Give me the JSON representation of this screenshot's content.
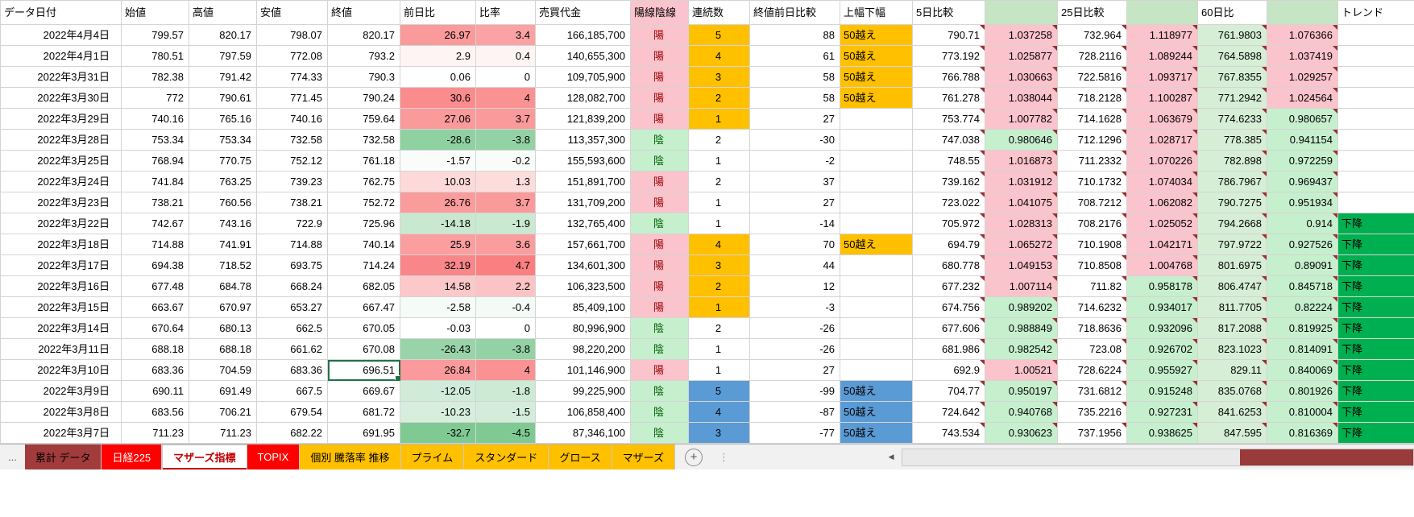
{
  "colors": {
    "scale_red": "#F8696B",
    "scale_green": "#63BE7B",
    "ratio_up_bg": "#FBC3CB",
    "ratio_down_bg": "#C6EFCE",
    "candle_up_text": "#9C0006",
    "candle_down_text": "#006100",
    "highlight_orange": "#FFC000",
    "highlight_blue": "#5B9BD5",
    "trend_down_bg": "#00B050",
    "mint_column_bg": "#D6EED6",
    "header_green_bg": "#C6E5C4",
    "selection_border": "#1F7246",
    "note_marker": "#9C2F2F",
    "grid_line": "#D4D4D4"
  },
  "columns": [
    {
      "key": "date",
      "label": "データ日付"
    },
    {
      "key": "open",
      "label": "始値"
    },
    {
      "key": "high",
      "label": "高値"
    },
    {
      "key": "low",
      "label": "安値"
    },
    {
      "key": "close",
      "label": "終値"
    },
    {
      "key": "change",
      "label": "前日比"
    },
    {
      "key": "pct",
      "label": "比率"
    },
    {
      "key": "value",
      "label": "売買代金"
    },
    {
      "key": "candle",
      "label": "陽線陰線",
      "fill": "pink"
    },
    {
      "key": "streak",
      "label": "連続数"
    },
    {
      "key": "cmp",
      "label": "終値前日比較"
    },
    {
      "key": "range",
      "label": "上幅下幅"
    },
    {
      "key": "d5",
      "label": "5日比較"
    },
    {
      "key": "d5r",
      "label": "",
      "fill": "green"
    },
    {
      "key": "d25",
      "label": "25日比較"
    },
    {
      "key": "d25r",
      "label": "",
      "fill": "green"
    },
    {
      "key": "d60",
      "label": "60日比"
    },
    {
      "key": "d60r",
      "label": "",
      "fill": "green"
    },
    {
      "key": "trend",
      "label": "トレンド"
    }
  ],
  "rows": [
    {
      "date": "2022年4月4日",
      "open": "799.57",
      "high": "820.17",
      "low": "798.07",
      "close": "820.17",
      "change": "26.97",
      "pct": "3.4",
      "value": "166,185,700",
      "candle": "陽",
      "streak": "5",
      "streak_hl": "orange",
      "cmp": "88",
      "range": "50越え",
      "range_hl": "orange",
      "d5": "790.71",
      "d5r": "1.037258",
      "d25": "732.964",
      "d25r": "1.118977",
      "d60": "761.9803",
      "d60r": "1.076366",
      "trend": ""
    },
    {
      "date": "2022年4月1日",
      "open": "780.51",
      "high": "797.59",
      "low": "772.08",
      "close": "793.2",
      "change": "2.9",
      "pct": "0.4",
      "value": "140,655,300",
      "candle": "陽",
      "streak": "4",
      "streak_hl": "orange",
      "cmp": "61",
      "range": "50越え",
      "range_hl": "orange",
      "d5": "773.192",
      "d5r": "1.025877",
      "d25": "728.2116",
      "d25r": "1.089244",
      "d60": "764.5898",
      "d60r": "1.037419",
      "trend": ""
    },
    {
      "date": "2022年3月31日",
      "open": "782.38",
      "high": "791.42",
      "low": "774.33",
      "close": "790.3",
      "change": "0.06",
      "pct": "0",
      "value": "109,705,900",
      "candle": "陽",
      "streak": "3",
      "streak_hl": "orange",
      "cmp": "58",
      "range": "50越え",
      "range_hl": "orange",
      "d5": "766.788",
      "d5r": "1.030663",
      "d25": "722.5816",
      "d25r": "1.093717",
      "d60": "767.8355",
      "d60r": "1.029257",
      "trend": ""
    },
    {
      "date": "2022年3月30日",
      "open": "772",
      "high": "790.61",
      "low": "771.45",
      "close": "790.24",
      "change": "30.6",
      "pct": "4",
      "value": "128,082,700",
      "candle": "陽",
      "streak": "2",
      "streak_hl": "orange",
      "cmp": "58",
      "range": "50越え",
      "range_hl": "orange",
      "d5": "761.278",
      "d5r": "1.038044",
      "d25": "718.2128",
      "d25r": "1.100287",
      "d60": "771.2942",
      "d60r": "1.024564",
      "trend": ""
    },
    {
      "date": "2022年3月29日",
      "open": "740.16",
      "high": "765.16",
      "low": "740.16",
      "close": "759.64",
      "change": "27.06",
      "pct": "3.7",
      "value": "121,839,200",
      "candle": "陽",
      "streak": "1",
      "streak_hl": "orange",
      "cmp": "27",
      "range": "",
      "range_hl": "",
      "d5": "753.774",
      "d5r": "1.007782",
      "d25": "714.1628",
      "d25r": "1.063679",
      "d60": "774.6233",
      "d60r": "0.980657",
      "trend": ""
    },
    {
      "date": "2022年3月28日",
      "open": "753.34",
      "high": "753.34",
      "low": "732.58",
      "close": "732.58",
      "change": "-28.6",
      "pct": "-3.8",
      "value": "113,357,300",
      "candle": "陰",
      "streak": "2",
      "streak_hl": "",
      "cmp": "-30",
      "range": "",
      "range_hl": "",
      "d5": "747.038",
      "d5r": "0.980646",
      "d25": "712.1296",
      "d25r": "1.028717",
      "d60": "778.385",
      "d60r": "0.941154",
      "trend": ""
    },
    {
      "date": "2022年3月25日",
      "open": "768.94",
      "high": "770.75",
      "low": "752.12",
      "close": "761.18",
      "change": "-1.57",
      "pct": "-0.2",
      "value": "155,593,600",
      "candle": "陰",
      "streak": "1",
      "streak_hl": "",
      "cmp": "-2",
      "range": "",
      "range_hl": "",
      "d5": "748.55",
      "d5r": "1.016873",
      "d25": "711.2332",
      "d25r": "1.070226",
      "d60": "782.898",
      "d60r": "0.972259",
      "trend": ""
    },
    {
      "date": "2022年3月24日",
      "open": "741.84",
      "high": "763.25",
      "low": "739.23",
      "close": "762.75",
      "change": "10.03",
      "pct": "1.3",
      "value": "151,891,700",
      "candle": "陽",
      "streak": "2",
      "streak_hl": "",
      "cmp": "37",
      "range": "",
      "range_hl": "",
      "d5": "739.162",
      "d5r": "1.031912",
      "d25": "710.1732",
      "d25r": "1.074034",
      "d60": "786.7967",
      "d60r": "0.969437",
      "trend": ""
    },
    {
      "date": "2022年3月23日",
      "open": "738.21",
      "high": "760.56",
      "low": "738.21",
      "close": "752.72",
      "change": "26.76",
      "pct": "3.7",
      "value": "131,709,200",
      "candle": "陽",
      "streak": "1",
      "streak_hl": "",
      "cmp": "27",
      "range": "",
      "range_hl": "",
      "d5": "723.022",
      "d5r": "1.041075",
      "d25": "708.7212",
      "d25r": "1.062082",
      "d60": "790.7275",
      "d60r": "0.951934",
      "trend": ""
    },
    {
      "date": "2022年3月22日",
      "open": "742.67",
      "high": "743.16",
      "low": "722.9",
      "close": "725.96",
      "change": "-14.18",
      "pct": "-1.9",
      "value": "132,765,400",
      "candle": "陰",
      "streak": "1",
      "streak_hl": "",
      "cmp": "-14",
      "range": "",
      "range_hl": "",
      "d5": "705.972",
      "d5r": "1.028313",
      "d25": "708.2176",
      "d25r": "1.025052",
      "d60": "794.2668",
      "d60r": "0.914",
      "trend": "下降"
    },
    {
      "date": "2022年3月18日",
      "open": "714.88",
      "high": "741.91",
      "low": "714.88",
      "close": "740.14",
      "change": "25.9",
      "pct": "3.6",
      "value": "157,661,700",
      "candle": "陽",
      "streak": "4",
      "streak_hl": "orange",
      "cmp": "70",
      "range": "50越え",
      "range_hl": "orange",
      "d5": "694.79",
      "d5r": "1.065272",
      "d25": "710.1908",
      "d25r": "1.042171",
      "d60": "797.9722",
      "d60r": "0.927526",
      "trend": "下降"
    },
    {
      "date": "2022年3月17日",
      "open": "694.38",
      "high": "718.52",
      "low": "693.75",
      "close": "714.24",
      "change": "32.19",
      "pct": "4.7",
      "value": "134,601,300",
      "candle": "陽",
      "streak": "3",
      "streak_hl": "orange",
      "cmp": "44",
      "range": "",
      "range_hl": "",
      "d5": "680.778",
      "d5r": "1.049153",
      "d25": "710.8508",
      "d25r": "1.004768",
      "d60": "801.6975",
      "d60r": "0.89091",
      "trend": "下降"
    },
    {
      "date": "2022年3月16日",
      "open": "677.48",
      "high": "684.78",
      "low": "668.24",
      "close": "682.05",
      "change": "14.58",
      "pct": "2.2",
      "value": "106,323,500",
      "candle": "陽",
      "streak": "2",
      "streak_hl": "orange",
      "cmp": "12",
      "range": "",
      "range_hl": "",
      "d5": "677.232",
      "d5r": "1.007114",
      "d25": "711.82",
      "d25r": "0.958178",
      "d60": "806.4747",
      "d60r": "0.845718",
      "trend": "下降"
    },
    {
      "date": "2022年3月15日",
      "open": "663.67",
      "high": "670.97",
      "low": "653.27",
      "close": "667.47",
      "change": "-2.58",
      "pct": "-0.4",
      "value": "85,409,100",
      "candle": "陽",
      "streak": "1",
      "streak_hl": "orange",
      "cmp": "-3",
      "range": "",
      "range_hl": "",
      "d5": "674.756",
      "d5r": "0.989202",
      "d25": "714.6232",
      "d25r": "0.934017",
      "d60": "811.7705",
      "d60r": "0.82224",
      "trend": "下降"
    },
    {
      "date": "2022年3月14日",
      "open": "670.64",
      "high": "680.13",
      "low": "662.5",
      "close": "670.05",
      "change": "-0.03",
      "pct": "0",
      "value": "80,996,900",
      "candle": "陰",
      "streak": "2",
      "streak_hl": "",
      "cmp": "-26",
      "range": "",
      "range_hl": "",
      "d5": "677.606",
      "d5r": "0.988849",
      "d25": "718.8636",
      "d25r": "0.932096",
      "d60": "817.2088",
      "d60r": "0.819925",
      "trend": "下降"
    },
    {
      "date": "2022年3月11日",
      "open": "688.18",
      "high": "688.18",
      "low": "661.62",
      "close": "670.08",
      "change": "-26.43",
      "pct": "-3.8",
      "value": "98,220,200",
      "candle": "陰",
      "streak": "1",
      "streak_hl": "",
      "cmp": "-26",
      "range": "",
      "range_hl": "",
      "d5": "681.986",
      "d5r": "0.982542",
      "d25": "723.08",
      "d25r": "0.926702",
      "d60": "823.1023",
      "d60r": "0.814091",
      "trend": "下降"
    },
    {
      "date": "2022年3月10日",
      "open": "683.36",
      "high": "704.59",
      "low": "683.36",
      "close": "696.51",
      "change": "26.84",
      "pct": "4",
      "value": "101,146,900",
      "candle": "陽",
      "streak": "1",
      "streak_hl": "",
      "cmp": "27",
      "range": "",
      "range_hl": "",
      "d5": "692.9",
      "d5r": "1.00521",
      "d25": "728.6224",
      "d25r": "0.955927",
      "d60": "829.11",
      "d60r": "0.840069",
      "trend": "下降"
    },
    {
      "date": "2022年3月9日",
      "open": "690.11",
      "high": "691.49",
      "low": "667.5",
      "close": "669.67",
      "change": "-12.05",
      "pct": "-1.8",
      "value": "99,225,900",
      "candle": "陰",
      "streak": "5",
      "streak_hl": "blue",
      "cmp": "-99",
      "range": "50越え",
      "range_hl": "blue",
      "d5": "704.77",
      "d5r": "0.950197",
      "d25": "731.6812",
      "d25r": "0.915248",
      "d60": "835.0768",
      "d60r": "0.801926",
      "trend": "下降"
    },
    {
      "date": "2022年3月8日",
      "open": "683.56",
      "high": "706.21",
      "low": "679.54",
      "close": "681.72",
      "change": "-10.23",
      "pct": "-1.5",
      "value": "106,858,400",
      "candle": "陰",
      "streak": "4",
      "streak_hl": "blue",
      "cmp": "-87",
      "range": "50越え",
      "range_hl": "blue",
      "d5": "724.642",
      "d5r": "0.940768",
      "d25": "735.2216",
      "d25r": "0.927231",
      "d60": "841.6253",
      "d60r": "0.810004",
      "trend": "下降"
    },
    {
      "date": "2022年3月7日",
      "open": "711.23",
      "high": "711.23",
      "low": "682.22",
      "close": "691.95",
      "change": "-32.7",
      "pct": "-4.5",
      "value": "87,346,100",
      "candle": "陰",
      "streak": "3",
      "streak_hl": "blue",
      "cmp": "-77",
      "range": "50越え",
      "range_hl": "blue",
      "d5": "743.534",
      "d5r": "0.930623",
      "d25": "737.1956",
      "d25r": "0.938625",
      "d60": "847.595",
      "d60r": "0.816369",
      "trend": "下降"
    }
  ],
  "selected_cell": {
    "row": 16,
    "col": "close",
    "value": "696.51"
  },
  "sheet_bar": {
    "overflow_label": "...",
    "tabs": [
      {
        "name": "cumulative-data",
        "label": "累計 データ",
        "bg": "#A23B3B",
        "fg": "#000000",
        "active": false
      },
      {
        "name": "nikkei-225",
        "label": "日経225",
        "bg": "#FF0000",
        "fg": "#FFFFFF",
        "active": false
      },
      {
        "name": "mothers-index",
        "label": "マザーズ指標",
        "bg": "#FFFFFF",
        "fg": "#C00000",
        "active": true
      },
      {
        "name": "topix",
        "label": "TOPIX",
        "bg": "#FF0000",
        "fg": "#FFFFFF",
        "active": false
      },
      {
        "name": "individual-updown-trend",
        "label": "個別 騰落率 推移",
        "bg": "#FFC000",
        "fg": "#000000",
        "active": false
      },
      {
        "name": "prime",
        "label": "プライム",
        "bg": "#FFC000",
        "fg": "#000000",
        "active": false
      },
      {
        "name": "standard",
        "label": "スタンダード",
        "bg": "#FFC000",
        "fg": "#000000",
        "active": false
      },
      {
        "name": "growth",
        "label": "グロース",
        "bg": "#FFC000",
        "fg": "#000000",
        "active": false
      },
      {
        "name": "mothers",
        "label": "マザーズ",
        "bg": "#FFC000",
        "fg": "#000000",
        "active": false
      }
    ],
    "add_button_label": "+",
    "splitter_label": "⋮",
    "scrollbar": {
      "left_arrow": "◀",
      "thumb_color": "#9A3B3B"
    }
  }
}
